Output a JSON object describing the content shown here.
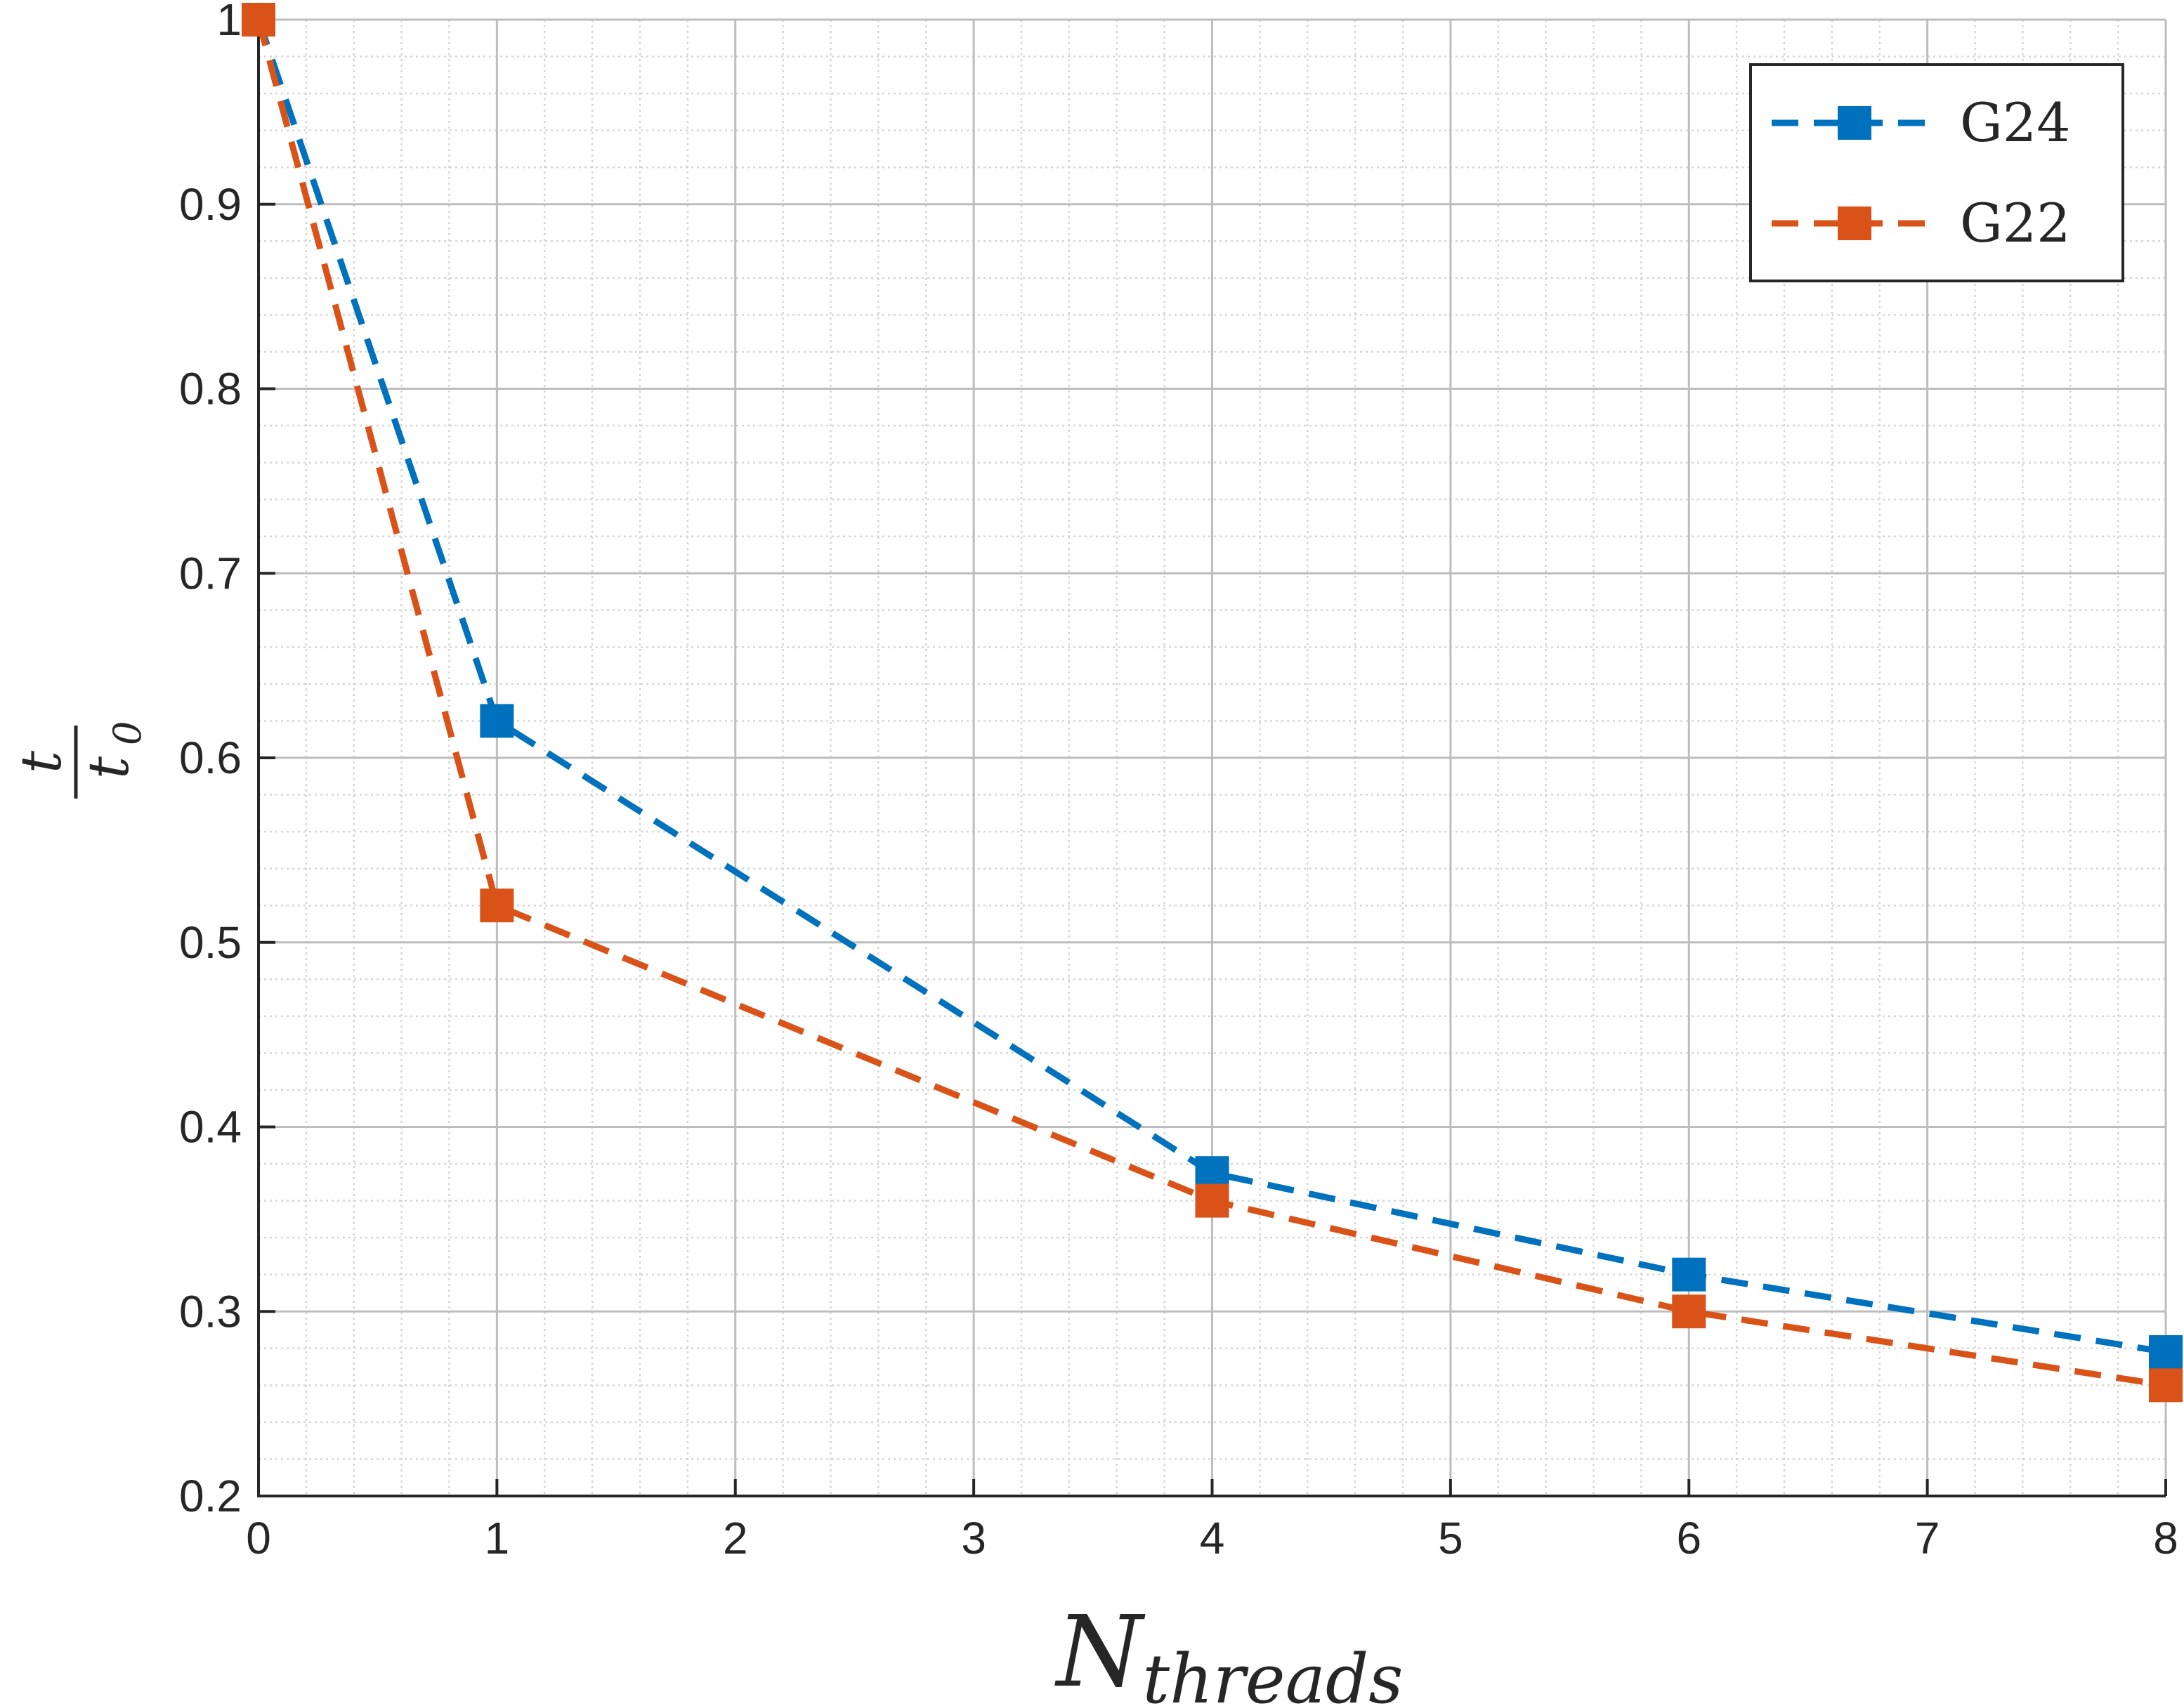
{
  "chart_data": {
    "type": "line",
    "xlabel": {
      "main": "N",
      "sub": "threads"
    },
    "ylabel": {
      "numerator": "t",
      "denominator": "t",
      "denominator_sub": "0"
    },
    "xlim": [
      0,
      8
    ],
    "ylim": [
      0.2,
      1
    ],
    "x_ticks": [
      "0",
      "1",
      "2",
      "3",
      "4",
      "5",
      "6",
      "7",
      "8"
    ],
    "y_ticks": [
      "0.2",
      "0.3",
      "0.4",
      "0.5",
      "0.6",
      "0.7",
      "0.8",
      "0.9",
      "1"
    ],
    "grid": true,
    "minor_grid": true,
    "legend_position": "top-right",
    "series": [
      {
        "name": "G24",
        "color": "#0072BD",
        "line_style": "dashed",
        "marker": "square",
        "x": [
          0,
          1,
          4,
          6,
          8
        ],
        "y": [
          1.0,
          0.62,
          0.375,
          0.32,
          0.278
        ]
      },
      {
        "name": "G22",
        "color": "#D95319",
        "line_style": "dashed",
        "marker": "square",
        "x": [
          0,
          1,
          4,
          6,
          8
        ],
        "y": [
          1.0,
          0.52,
          0.36,
          0.3,
          0.26
        ]
      }
    ]
  }
}
